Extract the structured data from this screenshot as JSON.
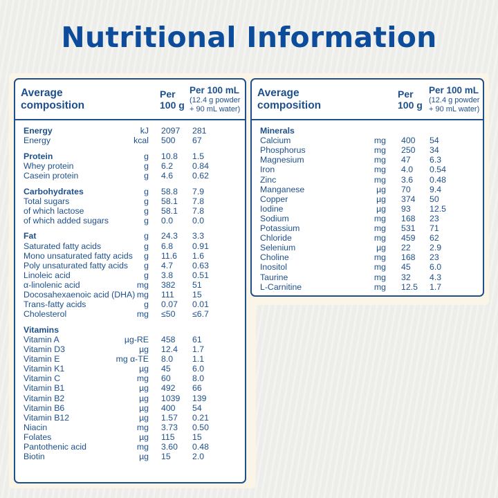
{
  "page_title": "Nutritional Information",
  "left_table": {
    "header": {
      "composition": "Average\ncomposition",
      "per_100g": "Per\n100 g",
      "per_100ml": "Per 100 mL",
      "per_100ml_note": "(12.4 g powder\n+ 90 mL water)"
    },
    "rows": [
      {
        "name": "Energy",
        "unit": "kJ",
        "per100g": "2097",
        "per100ml": "281",
        "bold": true
      },
      {
        "name": "Energy",
        "unit": "kcal",
        "per100g": "500",
        "per100ml": "67"
      },
      {
        "name": "Protein",
        "unit": "g",
        "per100g": "10.8",
        "per100ml": "1.5",
        "bold": true,
        "gap": true
      },
      {
        "name": "Whey protein",
        "unit": "g",
        "per100g": "6.2",
        "per100ml": "0.84"
      },
      {
        "name": "Casein protein",
        "unit": "g",
        "per100g": "4.6",
        "per100ml": "0.62"
      },
      {
        "name": "Carbohydrates",
        "unit": "g",
        "per100g": "58.8",
        "per100ml": "7.9",
        "bold": true,
        "gap": true
      },
      {
        "name": "Total sugars",
        "unit": "g",
        "per100g": "58.1",
        "per100ml": "7.8"
      },
      {
        "name": "of which lactose",
        "unit": "g",
        "per100g": "58.1",
        "per100ml": "7.8"
      },
      {
        "name": "of which added sugars",
        "unit": "g",
        "per100g": "0.0",
        "per100ml": "0.0"
      },
      {
        "name": "Fat",
        "unit": "g",
        "per100g": "24.3",
        "per100ml": "3.3",
        "bold": true,
        "gap": true
      },
      {
        "name": "Saturated fatty acids",
        "unit": "g",
        "per100g": "6.8",
        "per100ml": "0.91"
      },
      {
        "name": "Mono unsaturated fatty acids",
        "unit": "g",
        "per100g": "11.6",
        "per100ml": "1.6"
      },
      {
        "name": "Poly unsaturated fatty acids",
        "unit": "g",
        "per100g": "4.7",
        "per100ml": "0.63"
      },
      {
        "name": "Linoleic acid",
        "unit": "g",
        "per100g": "3.8",
        "per100ml": "0.51"
      },
      {
        "name": "α-linolenic acid",
        "unit": "mg",
        "per100g": "382",
        "per100ml": "51"
      },
      {
        "name": "Docosahexaenoic acid (DHA)",
        "unit": "mg",
        "per100g": "111",
        "per100ml": "15"
      },
      {
        "name": "Trans-fatty acids",
        "unit": "g",
        "per100g": "0.07",
        "per100ml": "0.01"
      },
      {
        "name": "Cholesterol",
        "unit": "mg",
        "per100g": "≤50",
        "per100ml": "≤6.7"
      },
      {
        "name": "Vitamins",
        "unit": "",
        "per100g": "",
        "per100ml": "",
        "bold": true,
        "gap": true
      },
      {
        "name": "Vitamin A",
        "unit": "µg-RE",
        "per100g": "458",
        "per100ml": "61"
      },
      {
        "name": "Vitamin D3",
        "unit": "µg",
        "per100g": "12.4",
        "per100ml": "1.7"
      },
      {
        "name": "Vitamin E",
        "unit": "mg α-TE",
        "per100g": "8.0",
        "per100ml": "1.1"
      },
      {
        "name": "Vitamin K1",
        "unit": "µg",
        "per100g": "45",
        "per100ml": "6.0"
      },
      {
        "name": "Vitamin C",
        "unit": "mg",
        "per100g": "60",
        "per100ml": "8.0"
      },
      {
        "name": "Vitamin B1",
        "unit": "µg",
        "per100g": "492",
        "per100ml": "66"
      },
      {
        "name": "Vitamin B2",
        "unit": "µg",
        "per100g": "1039",
        "per100ml": "139"
      },
      {
        "name": "Vitamin B6",
        "unit": "µg",
        "per100g": "400",
        "per100ml": "54"
      },
      {
        "name": "Vitamin B12",
        "unit": "µg",
        "per100g": "1.57",
        "per100ml": "0.21"
      },
      {
        "name": "Niacin",
        "unit": "mg",
        "per100g": "3.73",
        "per100ml": "0.50"
      },
      {
        "name": "Folates",
        "unit": "µg",
        "per100g": "115",
        "per100ml": "15"
      },
      {
        "name": "Pantothenic acid",
        "unit": "mg",
        "per100g": "3.60",
        "per100ml": "0.48"
      },
      {
        "name": "Biotin",
        "unit": "µg",
        "per100g": "15",
        "per100ml": "2.0"
      }
    ]
  },
  "right_table": {
    "header": {
      "composition": "Average\ncomposition",
      "per_100g": "Per\n100 g",
      "per_100ml": "Per 100 mL",
      "per_100ml_note": "(12.4 g powder\n+ 90 mL water)"
    },
    "rows": [
      {
        "name": "Minerals",
        "unit": "",
        "per100g": "",
        "per100ml": "",
        "bold": true
      },
      {
        "name": "Calcium",
        "unit": "mg",
        "per100g": "400",
        "per100ml": "54"
      },
      {
        "name": "Phosphorus",
        "unit": "mg",
        "per100g": "250",
        "per100ml": "34"
      },
      {
        "name": "Magnesium",
        "unit": "mg",
        "per100g": "47",
        "per100ml": "6.3"
      },
      {
        "name": "Iron",
        "unit": "mg",
        "per100g": "4.0",
        "per100ml": "0.54"
      },
      {
        "name": "Zinc",
        "unit": "mg",
        "per100g": "3.6",
        "per100ml": "0.48"
      },
      {
        "name": "Manganese",
        "unit": "µg",
        "per100g": "70",
        "per100ml": "9.4"
      },
      {
        "name": "Copper",
        "unit": "µg",
        "per100g": "374",
        "per100ml": "50"
      },
      {
        "name": "Iodine",
        "unit": "µg",
        "per100g": "93",
        "per100ml": "12.5"
      },
      {
        "name": "Sodium",
        "unit": "mg",
        "per100g": "168",
        "per100ml": "23"
      },
      {
        "name": "Potassium",
        "unit": "mg",
        "per100g": "531",
        "per100ml": "71"
      },
      {
        "name": "Chloride",
        "unit": "mg",
        "per100g": "459",
        "per100ml": "62"
      },
      {
        "name": "Selenium",
        "unit": "µg",
        "per100g": "22",
        "per100ml": "2.9"
      },
      {
        "name": "Choline",
        "unit": "mg",
        "per100g": "168",
        "per100ml": "23"
      },
      {
        "name": "Inositol",
        "unit": "mg",
        "per100g": "45",
        "per100ml": "6.0"
      },
      {
        "name": "Taurine",
        "unit": "mg",
        "per100g": "32",
        "per100ml": "4.3"
      },
      {
        "name": "L-Carnitine",
        "unit": "mg",
        "per100g": "12.5",
        "per100ml": "1.7"
      }
    ]
  }
}
